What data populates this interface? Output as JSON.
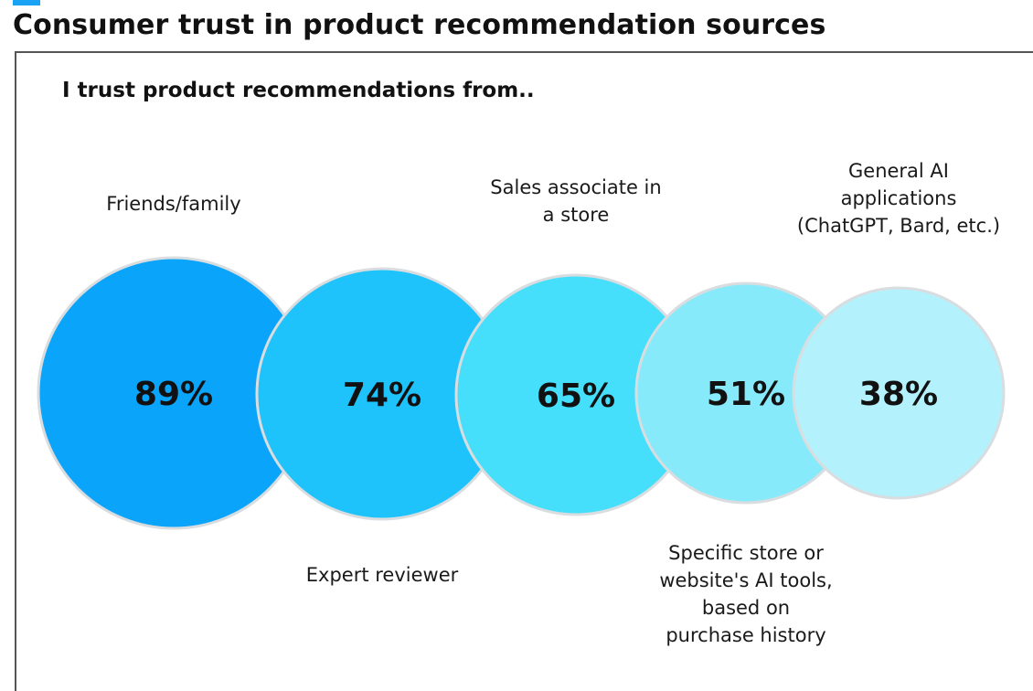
{
  "page": {
    "title": "Consumer trust in product recommendation sources",
    "accent_color": "#1aa3f5"
  },
  "chart_data": {
    "type": "bubble",
    "title": "I trust product recommendations from..",
    "unit": "%",
    "series": [
      {
        "category": "Friends/family",
        "value": 89,
        "label": "89%",
        "color": "#0aa4fa"
      },
      {
        "category": "Expert reviewer",
        "value": 74,
        "label": "74%",
        "color": "#1fc3fb"
      },
      {
        "category": "Sales associate  in\na store",
        "value": 65,
        "label": "65%",
        "color": "#45defb"
      },
      {
        "category": "Specific store or\nwebsite's AI tools,\nbased on\npurchase history",
        "value": 51,
        "label": "51%",
        "color": "#86eafb"
      },
      {
        "category": "General AI\napplications\n(ChatGPT, Bard, etc.)",
        "value": 38,
        "label": "38%",
        "color": "#b3f1fc"
      }
    ],
    "label_positions": [
      "above",
      "below",
      "above",
      "below",
      "above"
    ]
  }
}
